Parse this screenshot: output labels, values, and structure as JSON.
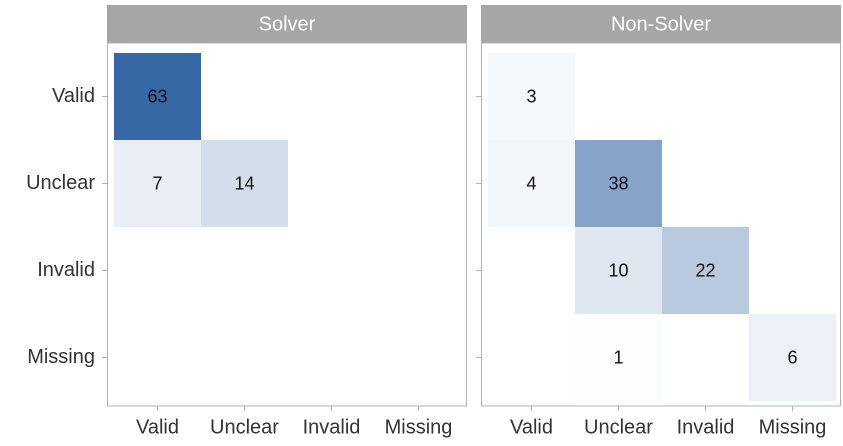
{
  "chart_data": {
    "type": "heatmap",
    "x_categories": [
      "Valid",
      "Unclear",
      "Invalid",
      "Missing"
    ],
    "y_categories": [
      "Valid",
      "Unclear",
      "Invalid",
      "Missing"
    ],
    "color_low": "#ffffff",
    "color_high": "#3768a6",
    "strip_color": "#a6a6a6",
    "facets": [
      {
        "name": "Solver",
        "values": [
          [
            63,
            null,
            null,
            null
          ],
          [
            7,
            14,
            null,
            null
          ],
          [
            null,
            null,
            null,
            null
          ],
          [
            null,
            null,
            null,
            null
          ]
        ]
      },
      {
        "name": "Non-Solver",
        "values": [
          [
            3,
            null,
            null,
            null
          ],
          [
            4,
            38,
            null,
            null
          ],
          [
            null,
            10,
            22,
            null
          ],
          [
            null,
            1,
            null,
            6
          ]
        ]
      }
    ]
  }
}
